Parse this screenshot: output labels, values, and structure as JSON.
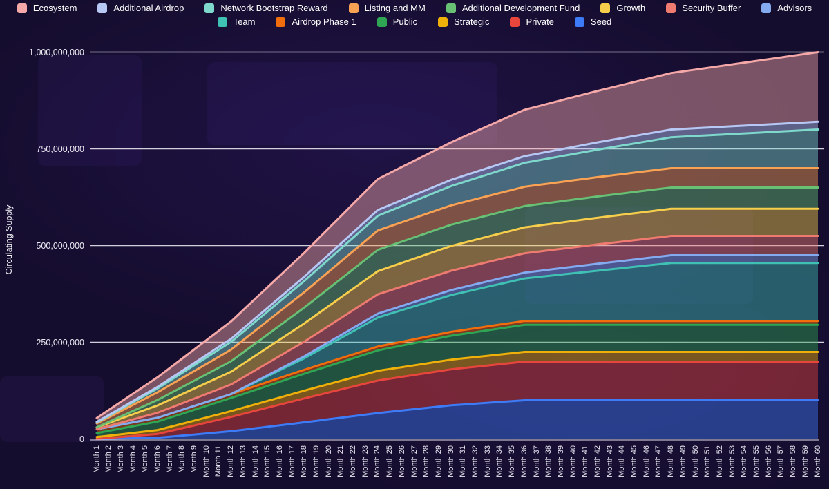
{
  "y_axis": {
    "title": "Circulating Supply",
    "ticks": [
      {
        "label": "0",
        "value": 0
      },
      {
        "label": "250,000,000",
        "value": 250
      },
      {
        "label": "500,000,000",
        "value": 500
      },
      {
        "label": "750,000,000",
        "value": 750
      },
      {
        "label": "1,000,000,000",
        "value": 1000
      }
    ]
  },
  "x_labels": [
    "Month 1",
    "Month 2",
    "Month 3",
    "Month 4",
    "Month 5",
    "Month 6",
    "Month 7",
    "Month 8",
    "Month 9",
    "Month 10",
    "Month 11",
    "Month 12",
    "Month 13",
    "Month 14",
    "Month 15",
    "Month 16",
    "Month 17",
    "Month 18",
    "Month 19",
    "Month 20",
    "Month 21",
    "Month 22",
    "Month 23",
    "Month 24",
    "Month 25",
    "Month 26",
    "Month 27",
    "Month 28",
    "Month 29",
    "Month 30",
    "Month 31",
    "Month 32",
    "Month 33",
    "Month 34",
    "Month 35",
    "Month 36",
    "Month 37",
    "Month 38",
    "Month 39",
    "Month 40",
    "Month 41",
    "Month 42",
    "Month 43",
    "Month 44",
    "Month 45",
    "Month 46",
    "Month 47",
    "Month 48",
    "Month 49",
    "Month 50",
    "Month 51",
    "Month 52",
    "Month 53",
    "Month 54",
    "Month 55",
    "Month 56",
    "Month 57",
    "Month 58",
    "Month 59",
    "Month 60"
  ],
  "legend": {
    "rows": [
      [
        {
          "label": "Ecosystem",
          "color": "#F5A8A8"
        },
        {
          "label": "Additional Airdrop",
          "color": "#B7C8F4"
        },
        {
          "label": "Network Bootstrap Reward",
          "color": "#7ED8CC"
        },
        {
          "label": "Listing and MM",
          "color": "#F9A254"
        },
        {
          "label": "Additional Development Fund",
          "color": "#68C074"
        },
        {
          "label": "Growth",
          "color": "#F6CE4C"
        },
        {
          "label": "Security Buffer",
          "color": "#EF7B70"
        },
        {
          "label": "Advisors",
          "color": "#84AAF0"
        }
      ],
      [
        {
          "label": "Team",
          "color": "#3FC1B4"
        },
        {
          "label": "Airdrop Phase 1",
          "color": "#F26E0D"
        },
        {
          "label": "Public",
          "color": "#2FA653"
        },
        {
          "label": "Strategic",
          "color": "#EFB009"
        },
        {
          "label": "Private",
          "color": "#E8453C"
        },
        {
          "label": "Seed",
          "color": "#3D7BF7"
        }
      ]
    ]
  },
  "chart_data": {
    "type": "area",
    "stacked": true,
    "title": "",
    "xlabel": "",
    "ylabel": "Circulating Supply",
    "unit": "tokens (values below in millions)",
    "ylim": [
      0,
      1000
    ],
    "x_categories_count": 60,
    "x_category_format": "Month N",
    "grid": "horizontal",
    "legend_position": "top",
    "note": "Series are piecewise-linear between breakpoint months; stack order is bottom-to-top as listed.",
    "breakpoint_months": [
      1,
      6,
      12,
      18,
      24,
      30,
      36,
      42,
      48,
      54,
      60
    ],
    "series": [
      {
        "name": "Seed",
        "color": "#3D7BF7",
        "total": 100,
        "values_millions": [
          0,
          3,
          20,
          43,
          67,
          87,
          100,
          100,
          100,
          100,
          100
        ]
      },
      {
        "name": "Private",
        "color": "#E8453C",
        "total": 100,
        "values_millions": [
          0,
          10,
          37,
          62,
          84,
          93,
          100,
          100,
          100,
          100,
          100
        ]
      },
      {
        "name": "Strategic",
        "color": "#EFB009",
        "total": 25,
        "values_millions": [
          5,
          10,
          15,
          20,
          25,
          25,
          25,
          25,
          25,
          25,
          25
        ]
      },
      {
        "name": "Public",
        "color": "#2FA653",
        "total": 70,
        "values_millions": [
          10,
          22,
          34,
          44,
          53,
          62,
          70,
          70,
          70,
          70,
          70
        ]
      },
      {
        "name": "Airdrop Phase 1",
        "color": "#F26E0D",
        "total": 10,
        "values_millions": [
          10,
          10,
          10,
          10,
          10,
          10,
          10,
          10,
          10,
          10,
          10
        ]
      },
      {
        "name": "Team",
        "color": "#3FC1B4",
        "total": 150,
        "values_millions": [
          0,
          0,
          0,
          30,
          75,
          95,
          110,
          130,
          150,
          150,
          150
        ]
      },
      {
        "name": "Advisors",
        "color": "#84AAF0",
        "total": 20,
        "values_millions": [
          0,
          0,
          0,
          5,
          10,
          13,
          15,
          18,
          20,
          20,
          20
        ]
      },
      {
        "name": "Security Buffer",
        "color": "#EF7B70",
        "total": 50,
        "values_millions": [
          0,
          13,
          25,
          38,
          50,
          50,
          50,
          50,
          50,
          50,
          50
        ]
      },
      {
        "name": "Growth",
        "color": "#F6CE4C",
        "total": 70,
        "values_millions": [
          5,
          19,
          33,
          47,
          60,
          64,
          67,
          69,
          70,
          70,
          70
        ]
      },
      {
        "name": "Additional Development Fund",
        "color": "#68C074",
        "total": 55,
        "values_millions": [
          0,
          14,
          27,
          41,
          55,
          55,
          55,
          55,
          55,
          55,
          55
        ]
      },
      {
        "name": "Listing and MM",
        "color": "#F9A254",
        "total": 50,
        "values_millions": [
          10,
          20,
          30,
          40,
          50,
          50,
          50,
          50,
          50,
          50,
          50
        ]
      },
      {
        "name": "Network Bootstrap Reward",
        "color": "#7ED8CC",
        "total": 100,
        "values_millions": [
          2,
          10,
          20,
          29,
          38,
          50,
          62,
          71,
          80,
          90,
          100
        ]
      },
      {
        "name": "Additional Airdrop",
        "color": "#B7C8F4",
        "total": 20,
        "values_millions": [
          2,
          4,
          8,
          11,
          15,
          16,
          17,
          19,
          20,
          20,
          20
        ]
      },
      {
        "name": "Ecosystem",
        "color": "#F5A8A8",
        "total": 180,
        "values_millions": [
          10,
          25,
          45,
          62,
          80,
          97,
          120,
          133,
          146,
          163,
          180
        ]
      }
    ]
  }
}
